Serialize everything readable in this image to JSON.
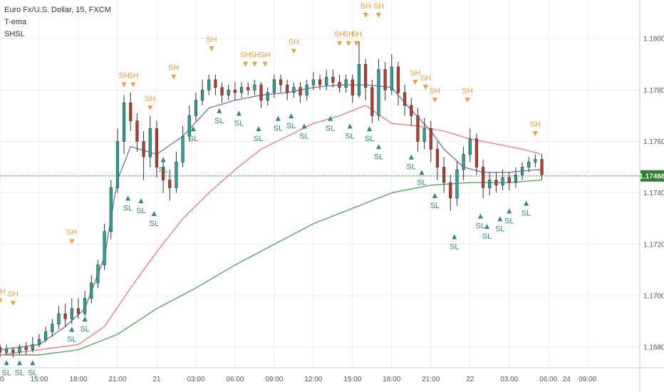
{
  "legend": {
    "symbol": "Euro Fx/U.S. Dollar, 15, FXCM",
    "indicator1": "T-ema",
    "indicator2": "SHSL"
  },
  "colors": {
    "up": "#26a69a",
    "down": "#c0392b",
    "ema_fast": "#7a78b8",
    "ema_mid": "#f08080",
    "ema_slow": "#5aa860",
    "sh": "#f0a03c",
    "sl": "#2e8b7a",
    "current_line": "#2e7d32",
    "grid": "#e9edf2"
  },
  "chart_data": {
    "type": "candlestick",
    "y_ticks": [
      "1.16800",
      "1.17000",
      "1.17200",
      "1.17400",
      "1.17600",
      "1.17800",
      "1.18000"
    ],
    "y_tick_values": [
      1.168,
      1.17,
      1.172,
      1.174,
      1.176,
      1.178,
      1.18
    ],
    "ylim": [
      1.1672,
      1.1815
    ],
    "x_ticks": [
      "00",
      "15:00",
      "18:00",
      "21:00",
      "21",
      "03:00",
      "06:00",
      "09:00",
      "12:00",
      "15:00",
      "18:00",
      "21:00",
      "22",
      "03:00",
      "06:00",
      "09:00"
    ],
    "x_tick_hours": [
      12,
      15,
      18,
      21,
      24,
      27,
      30,
      33,
      36,
      39,
      42,
      45,
      48,
      51,
      54,
      57
    ],
    "x_end_label": "24",
    "x_end_hour": 71.5,
    "xlim": [
      12,
      61
    ],
    "current_price": "1.17466",
    "current_value": 1.17466,
    "ema_fast": [
      [
        12,
        1.1679
      ],
      [
        15,
        1.1681
      ],
      [
        17,
        1.1688
      ],
      [
        18.5,
        1.1695
      ],
      [
        20,
        1.1715
      ],
      [
        21,
        1.1745
      ],
      [
        22,
        1.1758
      ],
      [
        24,
        1.1755
      ],
      [
        26,
        1.1762
      ],
      [
        28,
        1.1773
      ],
      [
        30,
        1.1776
      ],
      [
        32,
        1.1778
      ],
      [
        34,
        1.1779
      ],
      [
        36,
        1.1781
      ],
      [
        38,
        1.1782
      ],
      [
        40,
        1.1782
      ],
      [
        42,
        1.1781
      ],
      [
        43,
        1.1775
      ],
      [
        45,
        1.1764
      ],
      [
        46,
        1.1757
      ],
      [
        47.5,
        1.175
      ],
      [
        49,
        1.1748
      ],
      [
        51,
        1.1748
      ],
      [
        53,
        1.1749
      ],
      [
        53.5,
        1.1749
      ]
    ],
    "ema_mid": [
      [
        12,
        1.1677
      ],
      [
        15,
        1.1679
      ],
      [
        18,
        1.1681
      ],
      [
        20,
        1.1688
      ],
      [
        22,
        1.1703
      ],
      [
        24,
        1.1717
      ],
      [
        26,
        1.173
      ],
      [
        28,
        1.174
      ],
      [
        30,
        1.1749
      ],
      [
        32,
        1.1757
      ],
      [
        34,
        1.1762
      ],
      [
        36,
        1.1767
      ],
      [
        38,
        1.177
      ],
      [
        40,
        1.1774
      ],
      [
        42,
        1.1767
      ],
      [
        44,
        1.1766
      ],
      [
        46,
        1.1764
      ],
      [
        48,
        1.1761
      ],
      [
        50,
        1.1759
      ],
      [
        52,
        1.1757
      ],
      [
        53.5,
        1.1755
      ]
    ],
    "ema_slow": [
      [
        12,
        1.1677
      ],
      [
        15,
        1.1677
      ],
      [
        18,
        1.1679
      ],
      [
        21,
        1.1685
      ],
      [
        24,
        1.1695
      ],
      [
        27,
        1.1703
      ],
      [
        30,
        1.1712
      ],
      [
        33,
        1.172
      ],
      [
        36,
        1.1728
      ],
      [
        39,
        1.1734
      ],
      [
        42,
        1.174
      ],
      [
        45,
        1.1743
      ],
      [
        48,
        1.1744
      ],
      [
        51,
        1.1744
      ],
      [
        53.5,
        1.1745
      ]
    ],
    "candles": [
      [
        12,
        1.168,
        1.1678,
        1.1681,
        1.1676
      ],
      [
        12.5,
        1.1678,
        1.1679,
        1.1681,
        1.1677
      ],
      [
        13,
        1.1679,
        1.1678,
        1.168,
        1.1676
      ],
      [
        13.5,
        1.1678,
        1.168,
        1.1681,
        1.1677
      ],
      [
        14,
        1.168,
        1.1679,
        1.1682,
        1.1677
      ],
      [
        14.5,
        1.1679,
        1.1681,
        1.1684,
        1.1678
      ],
      [
        15,
        1.1681,
        1.1683,
        1.1685,
        1.168
      ],
      [
        15.5,
        1.1683,
        1.1686,
        1.1688,
        1.1682
      ],
      [
        16,
        1.1686,
        1.1689,
        1.1691,
        1.1684
      ],
      [
        16.5,
        1.1689,
        1.1693,
        1.1696,
        1.1687
      ],
      [
        17,
        1.1693,
        1.1691,
        1.1697,
        1.1688
      ],
      [
        17.5,
        1.1691,
        1.1695,
        1.1699,
        1.1689
      ],
      [
        18,
        1.1695,
        1.1693,
        1.1699,
        1.1691
      ],
      [
        18.5,
        1.1693,
        1.1699,
        1.1702,
        1.1692
      ],
      [
        19,
        1.1699,
        1.1705,
        1.1708,
        1.1697
      ],
      [
        19.5,
        1.1705,
        1.1712,
        1.1714,
        1.1703
      ],
      [
        20,
        1.1712,
        1.1725,
        1.1728,
        1.171
      ],
      [
        20.5,
        1.1725,
        1.1742,
        1.1745,
        1.1722
      ],
      [
        21,
        1.1742,
        1.176,
        1.1765,
        1.174
      ],
      [
        21.5,
        1.176,
        1.1775,
        1.1778,
        1.1755
      ],
      [
        22,
        1.1775,
        1.1768,
        1.1779,
        1.1764
      ],
      [
        22.5,
        1.1768,
        1.176,
        1.1771,
        1.1756
      ],
      [
        23,
        1.176,
        1.1754,
        1.1764,
        1.1745
      ],
      [
        23.5,
        1.1754,
        1.1765,
        1.177,
        1.175
      ],
      [
        24,
        1.1765,
        1.175,
        1.1768,
        1.1746
      ],
      [
        24.5,
        1.175,
        1.1745,
        1.1753,
        1.174
      ],
      [
        25,
        1.1745,
        1.1742,
        1.1749,
        1.1737
      ],
      [
        25.5,
        1.1742,
        1.1752,
        1.1756,
        1.174
      ],
      [
        26,
        1.1752,
        1.1762,
        1.1766,
        1.175
      ],
      [
        26.5,
        1.1762,
        1.177,
        1.1774,
        1.176
      ],
      [
        27,
        1.177,
        1.1776,
        1.1779,
        1.1768
      ],
      [
        27.5,
        1.1776,
        1.178,
        1.1784,
        1.1774
      ],
      [
        28,
        1.178,
        1.1784,
        1.1786,
        1.1778
      ],
      [
        28.5,
        1.1784,
        1.1781,
        1.1786,
        1.1778
      ],
      [
        29,
        1.1781,
        1.1778,
        1.1783,
        1.1775
      ],
      [
        29.5,
        1.1778,
        1.178,
        1.1782,
        1.1776
      ],
      [
        30,
        1.178,
        1.1779,
        1.1783,
        1.1776
      ],
      [
        30.5,
        1.1779,
        1.1781,
        1.1783,
        1.1777
      ],
      [
        31,
        1.1781,
        1.178,
        1.1783,
        1.1778
      ],
      [
        31.5,
        1.178,
        1.1782,
        1.1784,
        1.1778
      ],
      [
        32,
        1.1782,
        1.1776,
        1.1783,
        1.1773
      ],
      [
        32.5,
        1.1776,
        1.1779,
        1.1781,
        1.1774
      ],
      [
        33,
        1.1779,
        1.1784,
        1.1786,
        1.1777
      ],
      [
        33.5,
        1.1784,
        1.1782,
        1.1786,
        1.1779
      ],
      [
        34,
        1.1782,
        1.1779,
        1.1784,
        1.1776
      ],
      [
        34.5,
        1.1779,
        1.1781,
        1.1783,
        1.1777
      ],
      [
        35,
        1.1781,
        1.1778,
        1.1783,
        1.1775
      ],
      [
        35.5,
        1.1778,
        1.1782,
        1.1784,
        1.1776
      ],
      [
        36,
        1.1782,
        1.1784,
        1.1787,
        1.178
      ],
      [
        36.5,
        1.1784,
        1.1782,
        1.1786,
        1.178
      ],
      [
        37,
        1.1782,
        1.1785,
        1.1788,
        1.178
      ],
      [
        37.5,
        1.1785,
        1.1783,
        1.1788,
        1.1781
      ],
      [
        38,
        1.1783,
        1.1781,
        1.1786,
        1.1779
      ],
      [
        38.5,
        1.1781,
        1.1784,
        1.1786,
        1.1779
      ],
      [
        39,
        1.1784,
        1.1778,
        1.1786,
        1.1775
      ],
      [
        39.5,
        1.1778,
        1.179,
        1.1799,
        1.1777
      ],
      [
        40,
        1.179,
        1.1781,
        1.1792,
        1.1776
      ],
      [
        40.5,
        1.1781,
        1.177,
        1.1784,
        1.1767
      ],
      [
        41,
        1.177,
        1.1788,
        1.1792,
        1.1768
      ],
      [
        41.5,
        1.1788,
        1.178,
        1.1791,
        1.1776
      ],
      [
        42,
        1.178,
        1.1789,
        1.1794,
        1.1778
      ],
      [
        42.5,
        1.1789,
        1.1779,
        1.1791,
        1.1774
      ],
      [
        43,
        1.1779,
        1.1774,
        1.1782,
        1.177
      ],
      [
        43.5,
        1.1774,
        1.177,
        1.1777,
        1.1766
      ],
      [
        44,
        1.177,
        1.176,
        1.1773,
        1.1756
      ],
      [
        44.5,
        1.176,
        1.1765,
        1.1769,
        1.1757
      ],
      [
        45,
        1.1765,
        1.1757,
        1.1768,
        1.1752
      ],
      [
        45.5,
        1.1757,
        1.175,
        1.176,
        1.1745
      ],
      [
        46,
        1.175,
        1.1744,
        1.1754,
        1.174
      ],
      [
        46.5,
        1.1744,
        1.1738,
        1.1747,
        1.1733
      ],
      [
        47,
        1.1738,
        1.1749,
        1.1752,
        1.1735
      ],
      [
        47.5,
        1.1749,
        1.1755,
        1.1758,
        1.1745
      ],
      [
        48,
        1.1755,
        1.1761,
        1.1765,
        1.1752
      ],
      [
        48.5,
        1.1761,
        1.175,
        1.1763,
        1.1747
      ],
      [
        49,
        1.175,
        1.1742,
        1.1753,
        1.1738
      ],
      [
        49.5,
        1.1742,
        1.1745,
        1.1748,
        1.1739
      ],
      [
        50,
        1.1745,
        1.1743,
        1.1748,
        1.174
      ],
      [
        50.5,
        1.1743,
        1.1746,
        1.1749,
        1.1741
      ],
      [
        51,
        1.1746,
        1.1744,
        1.1748,
        1.1741
      ],
      [
        51.5,
        1.1744,
        1.1747,
        1.175,
        1.1742
      ],
      [
        52,
        1.1747,
        1.175,
        1.1752,
        1.1745
      ],
      [
        52.5,
        1.175,
        1.1752,
        1.1754,
        1.1748
      ],
      [
        53,
        1.1752,
        1.1753,
        1.1755,
        1.175
      ],
      [
        53.5,
        1.1753,
        1.1747,
        1.1755,
        1.1745
      ]
    ],
    "sh_marks": [
      [
        12,
        1.1699
      ],
      [
        13,
        1.1698
      ],
      [
        17.5,
        1.1722
      ],
      [
        21.5,
        1.1783
      ],
      [
        22.2,
        1.1783
      ],
      [
        23.5,
        1.1774
      ],
      [
        25.3,
        1.1786
      ],
      [
        28.2,
        1.1797
      ],
      [
        30.8,
        1.1791
      ],
      [
        31.5,
        1.1791
      ],
      [
        32.3,
        1.1791
      ],
      [
        34.5,
        1.1796
      ],
      [
        38,
        1.1799
      ],
      [
        38.7,
        1.1799
      ],
      [
        39.3,
        1.1799
      ],
      [
        40,
        1.181
      ],
      [
        41,
        1.181
      ],
      [
        43.8,
        1.1784
      ],
      [
        44.6,
        1.1782
      ],
      [
        45.3,
        1.1777
      ],
      [
        47.8,
        1.1777
      ],
      [
        53,
        1.1764
      ]
    ],
    "sl_marks": [
      [
        12.5,
        1.1673
      ],
      [
        13.5,
        1.1673
      ],
      [
        14.5,
        1.1673
      ],
      [
        17.5,
        1.1686
      ],
      [
        18.5,
        1.169
      ],
      [
        21.8,
        1.1737
      ],
      [
        22.8,
        1.1736
      ],
      [
        23.8,
        1.1731
      ],
      [
        24.5,
        1.1752
      ],
      [
        26.8,
        1.1764
      ],
      [
        28.8,
        1.1771
      ],
      [
        30.3,
        1.177
      ],
      [
        31.8,
        1.1764
      ],
      [
        33.3,
        1.1768
      ],
      [
        34.3,
        1.1769
      ],
      [
        35.3,
        1.1765
      ],
      [
        37.3,
        1.1768
      ],
      [
        38.8,
        1.1765
      ],
      [
        40.3,
        1.1764
      ],
      [
        41,
        1.1757
      ],
      [
        43.5,
        1.1753
      ],
      [
        44.3,
        1.1747
      ],
      [
        45.3,
        1.1738
      ],
      [
        46.8,
        1.1722
      ],
      [
        48.8,
        1.173
      ],
      [
        49.3,
        1.1726
      ],
      [
        50.3,
        1.1729
      ],
      [
        51,
        1.1732
      ],
      [
        52.3,
        1.1735
      ]
    ]
  }
}
